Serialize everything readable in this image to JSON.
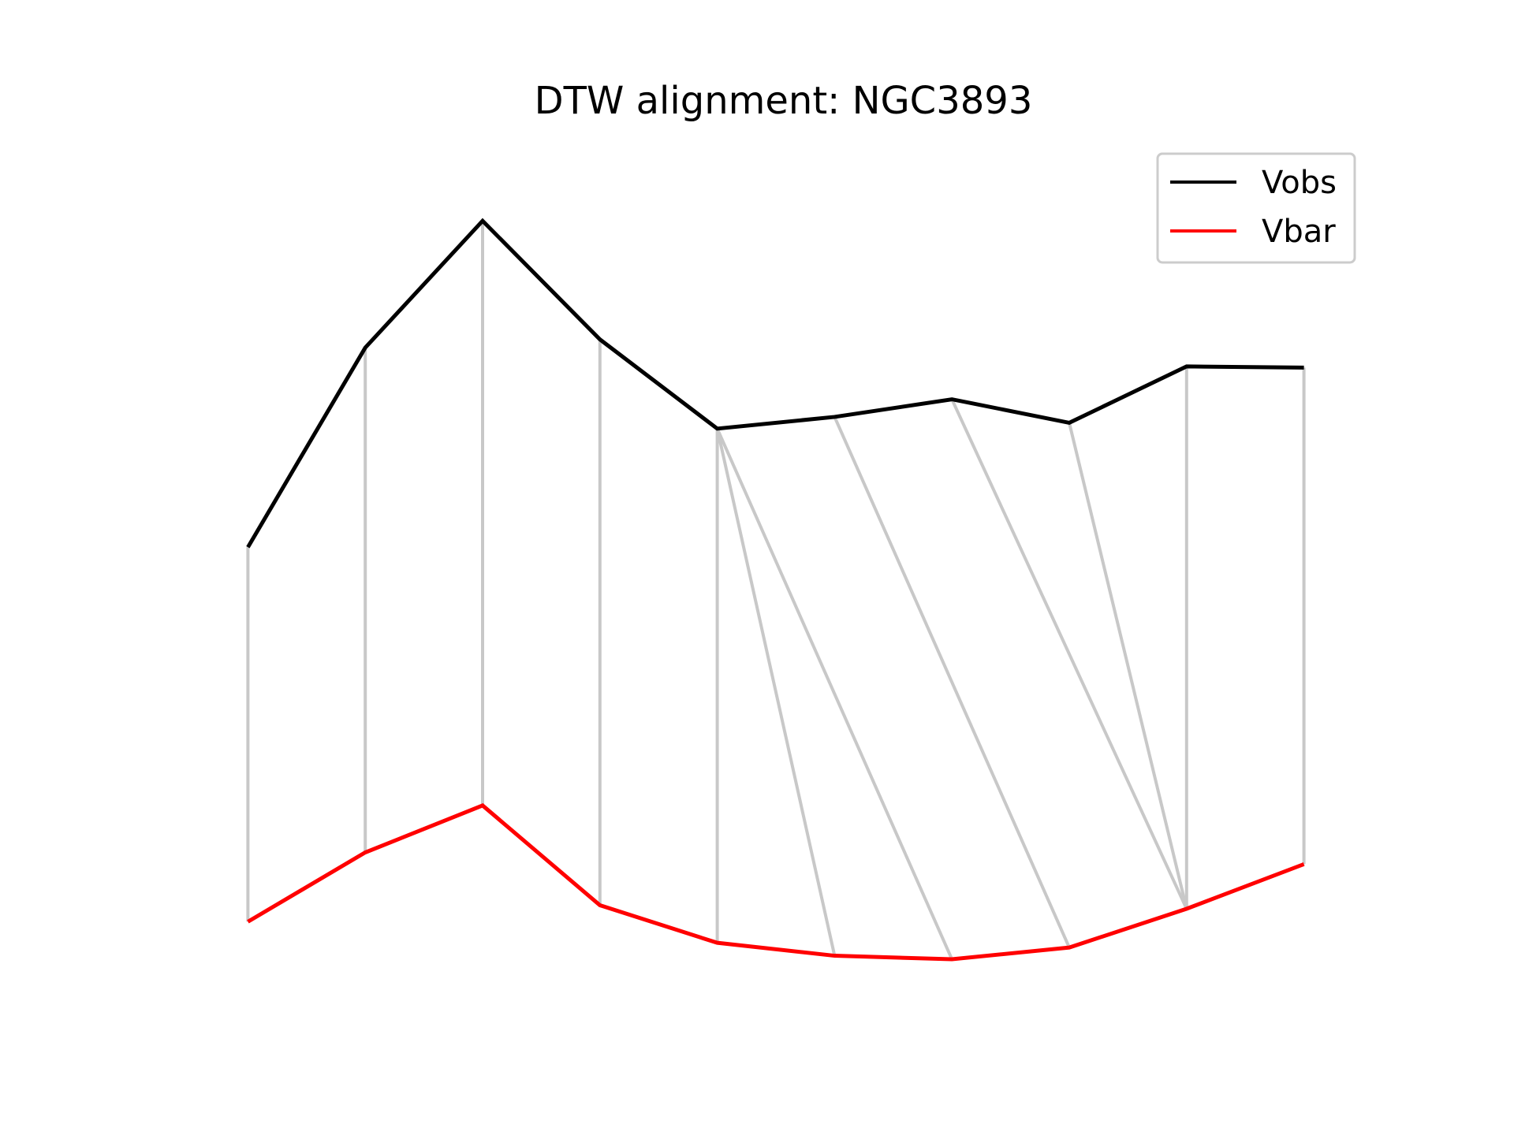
{
  "chart_data": {
    "type": "line",
    "title": "DTW alignment: NGC3893",
    "x": [
      0,
      1,
      2,
      3,
      4,
      5,
      6,
      7,
      8,
      9
    ],
    "series": [
      {
        "name": "Vobs",
        "color": "#000000",
        "values": [
          2.95,
          4.65,
          5.73,
          4.72,
          3.96,
          4.06,
          4.21,
          4.01,
          4.49,
          4.48
        ]
      },
      {
        "name": "Vbar",
        "color": "#ff0000",
        "values": [
          -0.24,
          0.35,
          0.75,
          -0.1,
          -0.42,
          -0.53,
          -0.56,
          -0.46,
          -0.13,
          0.25
        ]
      }
    ],
    "alignment_pairs": [
      [
        0,
        0
      ],
      [
        1,
        1
      ],
      [
        2,
        2
      ],
      [
        3,
        3
      ],
      [
        4,
        4
      ],
      [
        4,
        5
      ],
      [
        4,
        6
      ],
      [
        5,
        7
      ],
      [
        6,
        8
      ],
      [
        7,
        8
      ],
      [
        8,
        8
      ],
      [
        9,
        9
      ]
    ],
    "ylim": [
      -1.05,
      6.45
    ],
    "axes_visible": false,
    "grid": false,
    "legend": {
      "position": "top-right",
      "entries": [
        "Vobs",
        "Vbar"
      ]
    },
    "link_color": "#c8c8c8"
  }
}
